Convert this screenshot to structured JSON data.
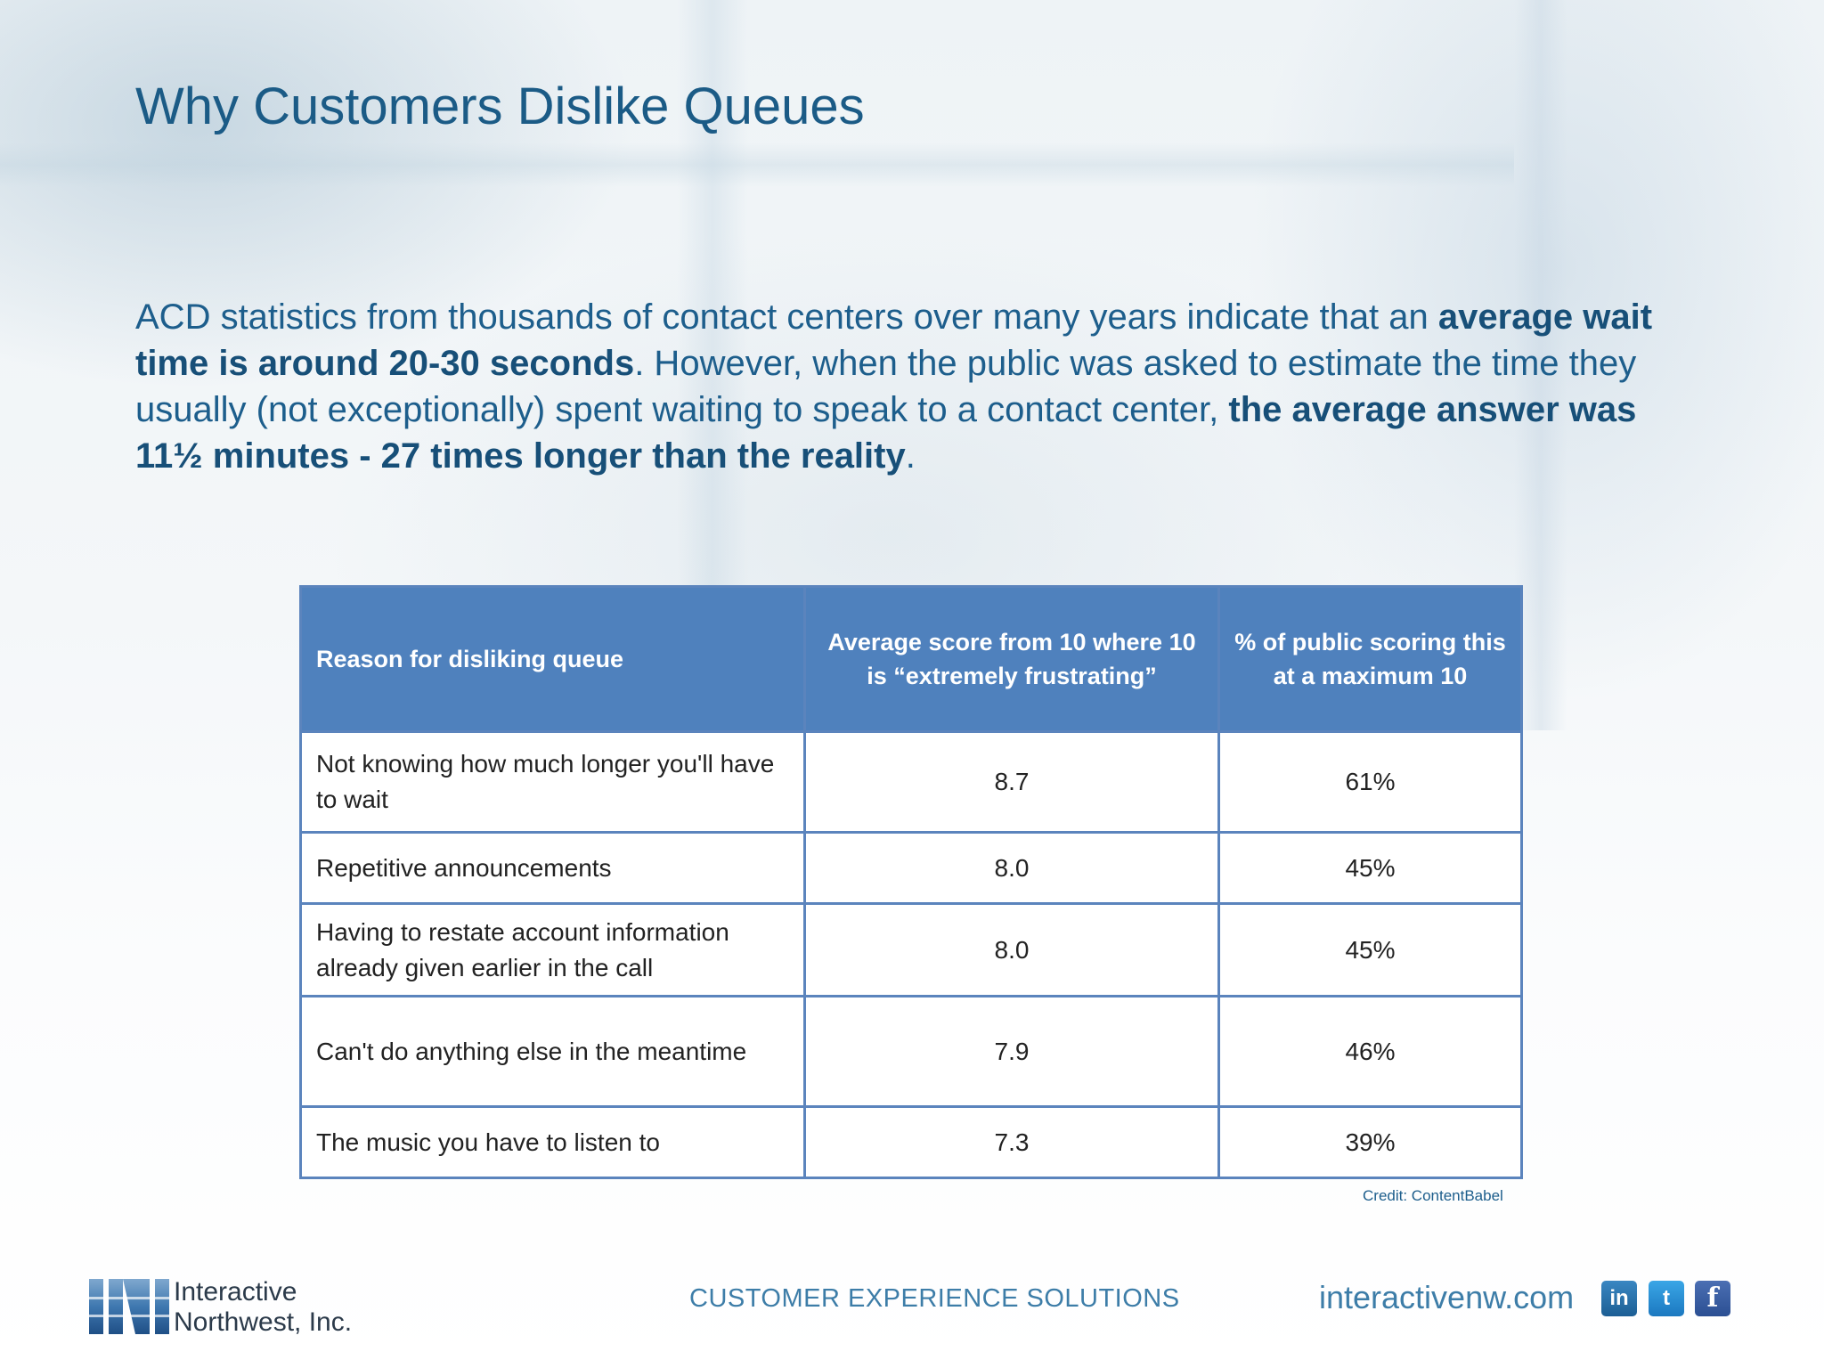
{
  "slide": {
    "title": "Why Customers Dislike Queues",
    "paragraph": {
      "p1": "ACD statistics from thousands of contact centers over many years indicate that an ",
      "b1": "average wait time is around 20-30 seconds",
      "p2": ". However, when the public was asked to estimate the time they usually (not exceptionally) spent waiting to speak to a contact center, ",
      "b2": "the average answer was 11½ minutes - 27 times longer than the reality",
      "p3": "."
    },
    "table": {
      "headers": [
        "Reason for disliking queue",
        "Average score from 10 where 10 is “extremely frustrating”",
        "% of public scoring this at a maximum 10"
      ],
      "rows": [
        [
          "Not knowing how much longer you'll have to wait",
          "8.7",
          "61%"
        ],
        [
          "Repetitive announcements",
          "8.0",
          "45%"
        ],
        [
          "Having to restate account information already given earlier in the call",
          "8.0",
          "45%"
        ],
        [
          "Can't do anything else in the meantime",
          "7.9",
          "46%"
        ],
        [
          "The music you have to listen to",
          "7.3",
          "39%"
        ]
      ]
    },
    "credit": "Credit: ContentBabel"
  },
  "footer": {
    "company_line1": "Interactive",
    "company_line2": "Northwest, Inc.",
    "tagline": "CUSTOMER EXPERIENCE SOLUTIONS",
    "website": "interactivenw.com",
    "social": {
      "linkedin": "in",
      "twitter": "t",
      "facebook": "f"
    }
  },
  "colors": {
    "title": "#1b5b86",
    "table_header": "#4f81bd",
    "table_border": "#5b84bd"
  }
}
